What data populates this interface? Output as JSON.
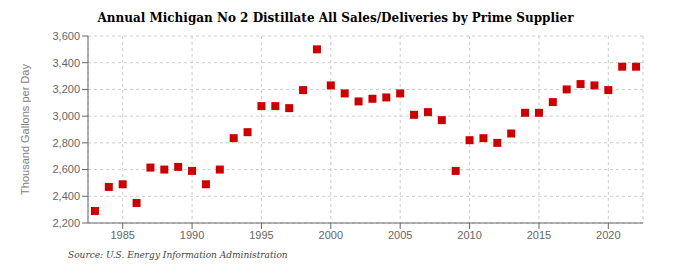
{
  "chart_data": {
    "type": "scatter",
    "title": "Annual Michigan No 2 Distillate All Sales/Deliveries by Prime Supplier",
    "ylabel": "Thousand Gallons per Day",
    "annotations": [
      "Source: U.S. Energy Information Administration"
    ],
    "x": [
      1983,
      1984,
      1985,
      1986,
      1987,
      1988,
      1989,
      1990,
      1991,
      1992,
      1993,
      1994,
      1995,
      1996,
      1997,
      1998,
      1999,
      2000,
      2001,
      2002,
      2003,
      2004,
      2005,
      2006,
      2007,
      2008,
      2009,
      2010,
      2011,
      2012,
      2013,
      2014,
      2015,
      2016,
      2017,
      2018,
      2019,
      2020,
      2021,
      2022
    ],
    "values": [
      2290,
      2470,
      2490,
      2350,
      2615,
      2600,
      2620,
      2590,
      2490,
      2600,
      2835,
      2880,
      3075,
      3075,
      3060,
      3195,
      3500,
      3230,
      3170,
      3110,
      3130,
      3140,
      3170,
      3010,
      3030,
      2970,
      2590,
      2820,
      2835,
      2800,
      2870,
      3025,
      3025,
      3105,
      3200,
      3240,
      3230,
      3195,
      3370,
      3370
    ],
    "color": "#cc0000",
    "marker": "square",
    "xlim": [
      1982.5,
      2022.5
    ],
    "xticks": [
      1985,
      1990,
      1995,
      2000,
      2005,
      2010,
      2015,
      2020
    ],
    "ylim": [
      2200,
      3600
    ],
    "yticks": [
      {
        "value": 2200,
        "label": "2,200"
      },
      {
        "value": 2400,
        "label": "2,400"
      },
      {
        "value": 2600,
        "label": "2,600"
      },
      {
        "value": 2800,
        "label": "2,800"
      },
      {
        "value": 3000,
        "label": "3,000"
      },
      {
        "value": 3200,
        "label": "3,200"
      },
      {
        "value": 3400,
        "label": "3,400"
      },
      {
        "value": 3600,
        "label": "3,600"
      }
    ],
    "grid": true
  }
}
